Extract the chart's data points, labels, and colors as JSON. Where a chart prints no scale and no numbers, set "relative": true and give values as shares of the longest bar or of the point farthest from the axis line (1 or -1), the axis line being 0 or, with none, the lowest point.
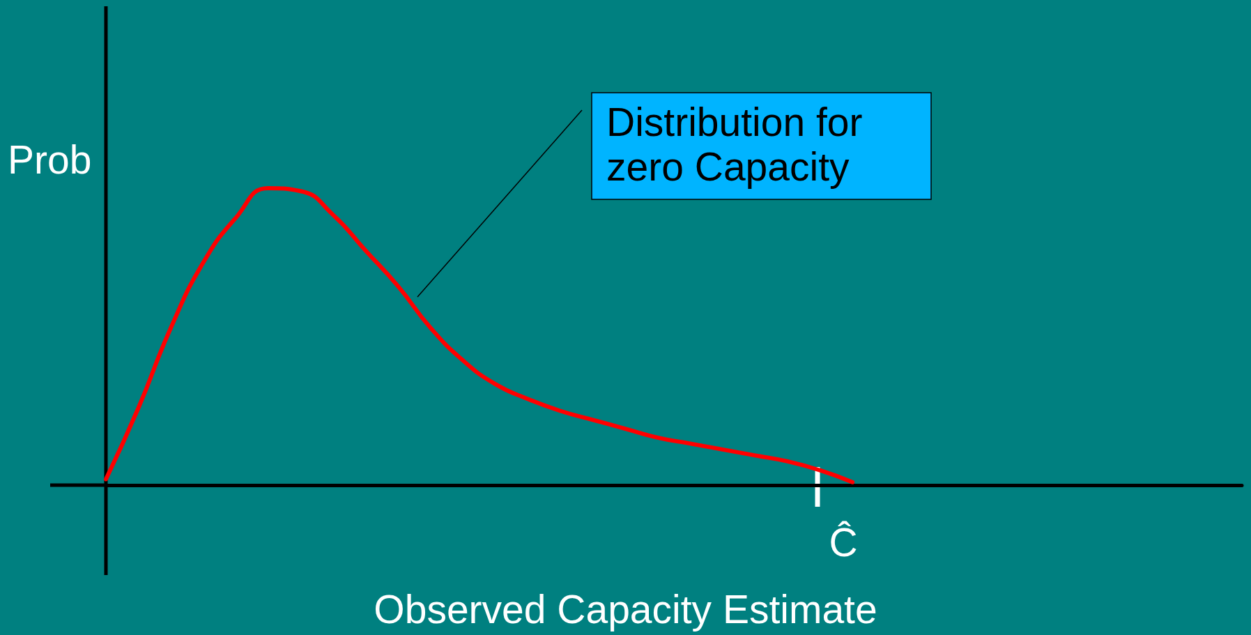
{
  "chart_data": {
    "type": "line",
    "relative": true,
    "xlabel": "Observed Capacity Estimate",
    "ylabel": "Prob",
    "marker": "none",
    "line_style": "solid",
    "categories": [
      null,
      null,
      null,
      null,
      null,
      null,
      null,
      null,
      null,
      null,
      null,
      null,
      null,
      null,
      null,
      null,
      null,
      null,
      null,
      null,
      null,
      null,
      null,
      null,
      null,
      null,
      null,
      null,
      null,
      null,
      null,
      null,
      null,
      null,
      null,
      null
    ],
    "series": [
      {
        "color": "#ff0000",
        "values": [
          0.02,
          0.26,
          0.53,
          0.75,
          0.9,
          1,
          0.99,
          0.91,
          0.79,
          0.67,
          0.53,
          0.42,
          0.34,
          0.29,
          0.25,
          0.22,
          0.19,
          0.16,
          0.14,
          0.12,
          0.1,
          0.08,
          0.05,
          0.01,
          null,
          null,
          null,
          null,
          null,
          null,
          null,
          null,
          null,
          null,
          null,
          null
        ]
      }
    ],
    "annotations": [
      "Distribution for zero Capacity",
      "Ĉ"
    ]
  }
}
